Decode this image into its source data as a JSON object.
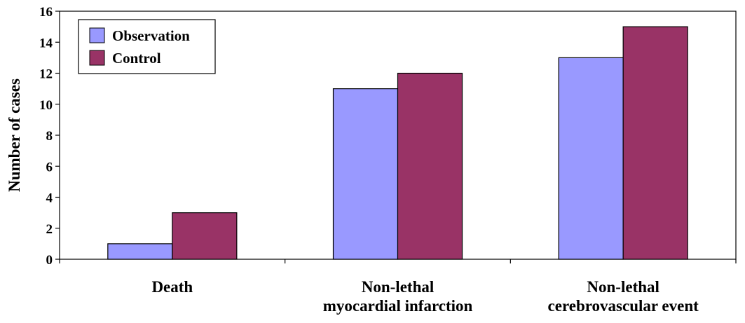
{
  "chart_data": {
    "type": "bar",
    "categories": [
      [
        "Death"
      ],
      [
        "Non-lethal",
        "myocardial infarction"
      ],
      [
        "Non-lethal",
        "cerebrovascular event"
      ]
    ],
    "series": [
      {
        "name": "Observation",
        "values": [
          1,
          11,
          13
        ],
        "color": "#9999ff"
      },
      {
        "name": "Control",
        "values": [
          3,
          12,
          15
        ],
        "color": "#993366"
      }
    ],
    "ylabel": "Number of cases",
    "xlabel": "",
    "ylim": [
      0,
      16
    ],
    "yticks": [
      0,
      2,
      4,
      6,
      8,
      10,
      12,
      14,
      16
    ],
    "grid": false,
    "legend_position": "top-left"
  }
}
